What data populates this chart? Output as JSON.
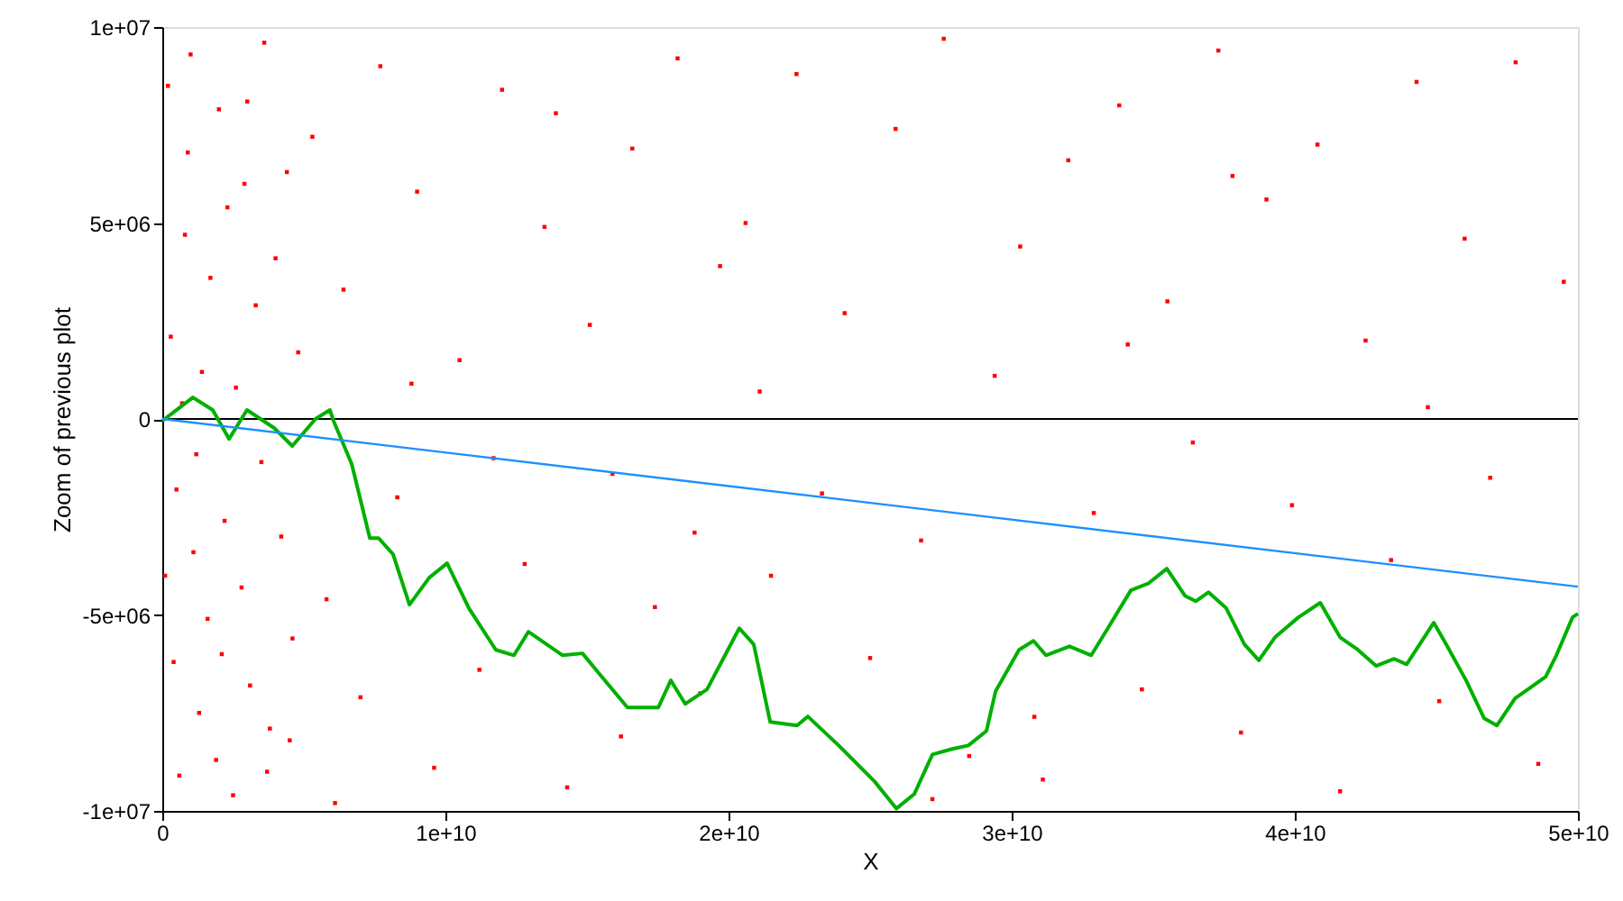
{
  "chart_data": {
    "type": "scatter",
    "xlabel": "X",
    "ylabel": "Zoom of previous plot",
    "xlim": [
      0,
      50000000000
    ],
    "ylim": [
      -10000000,
      10000000
    ],
    "xticks": [
      0,
      {
        "value": 10000000000,
        "label": "1e+10"
      },
      {
        "value": 20000000000,
        "label": "2e+10"
      },
      {
        "value": 30000000000,
        "label": "3e+10"
      },
      {
        "value": 40000000000,
        "label": "4e+10"
      },
      {
        "value": 50000000000,
        "label": "5e+10"
      }
    ],
    "yticks": [
      {
        "value": -10000000,
        "label": "-1e+07"
      },
      {
        "value": -5000000,
        "label": "-5e+06"
      },
      0,
      {
        "value": 5000000,
        "label": "5e+06"
      },
      {
        "value": 10000000,
        "label": "1e+07"
      }
    ],
    "grid": false,
    "ref_lines": [
      {
        "axis": "y",
        "value": 0,
        "color": "#000000"
      }
    ],
    "series": [
      {
        "marker": "square",
        "color": "#ff0000",
        "x": [
          200000000.0,
          400000000.0,
          300000000.0,
          600000000.0,
          800000000.0,
          500000000.0,
          1000000000.0,
          1100000000.0,
          900000000.0,
          1300000000.0,
          1400000000.0,
          1600000000.0,
          1700000000.0,
          1900000000.0,
          2000000000.0,
          2200000000.0,
          2300000000.0,
          2500000000.0,
          2600000000.0,
          2800000000.0,
          3000000000.0,
          3100000000.0,
          3300000000.0,
          3500000000.0,
          3600000000.0,
          3800000000.0,
          4000000000.0,
          4200000000.0,
          4400000000.0,
          4600000000.0,
          4800000000.0,
          100000000.0,
          700000000.0,
          1200000000.0,
          2100000000.0,
          2900000000.0,
          3700000000.0,
          4500000000.0,
          5300000000.0,
          5800000000.0,
          6400000000.0,
          7000000000.0,
          7700000000.0,
          8300000000.0,
          9000000000.0,
          9600000000.0,
          10500000000.0,
          11200000000.0,
          12000000000.0,
          12800000000.0,
          13500000000.0,
          14300000000.0,
          15100000000.0,
          15900000000.0,
          16600000000.0,
          17400000000.0,
          18200000000.0,
          19000000000.0,
          19700000000.0,
          6100000000.0,
          8800000000.0,
          11700000000.0,
          13900000000.0,
          16200000000.0,
          18800000000.0,
          20600000000.0,
          21500000000.0,
          22400000000.0,
          23300000000.0,
          24100000000.0,
          25000000000.0,
          25900000000.0,
          26800000000.0,
          27600000000.0,
          28500000000.0,
          29400000000.0,
          30300000000.0,
          31100000000.0,
          32000000000.0,
          32900000000.0,
          33800000000.0,
          34600000000.0,
          35500000000.0,
          36400000000.0,
          37300000000.0,
          38100000000.0,
          39000000000.0,
          39900000000.0,
          40800000000.0,
          41600000000.0,
          42500000000.0,
          43400000000.0,
          44300000000.0,
          45100000000.0,
          46000000000.0,
          46900000000.0,
          47800000000.0,
          48600000000.0,
          49500000000.0,
          21100000000.0,
          27200000000.0,
          34100000000.0,
          44700000000.0,
          30800000000.0,
          37800000000.0
        ],
        "values": [
          8500000.0,
          -6200000.0,
          2100000.0,
          -9100000.0,
          4700000.0,
          -1800000.0,
          9300000.0,
          -3400000.0,
          6800000.0,
          -7500000.0,
          1200000.0,
          -5100000.0,
          3600000.0,
          -8700000.0,
          7900000.0,
          -2600000.0,
          5400000.0,
          -9600000.0,
          800000.0,
          -4300000.0,
          8100000.0,
          -6800000.0,
          2900000.0,
          -1100000.0,
          9600000.0,
          -7900000.0,
          4100000.0,
          -3000000.0,
          6300000.0,
          -5600000.0,
          1700000.0,
          -4000000.0,
          400000.0,
          -900000.0,
          -6000000.0,
          6000000.0,
          -9000000.0,
          -8200000.0,
          7200000.0,
          -4600000.0,
          3300000.0,
          -7100000.0,
          9000000.0,
          -2000000.0,
          5800000.0,
          -8900000.0,
          1500000.0,
          -6400000.0,
          8400000.0,
          -3700000.0,
          4900000.0,
          -9400000.0,
          2400000.0,
          -1400000.0,
          6900000.0,
          -4800000.0,
          9200000.0,
          -7000000.0,
          3900000.0,
          -9800000.0,
          900000.0,
          -1000000.0,
          7800000.0,
          -8100000.0,
          -2900000.0,
          5000000.0,
          -4000000.0,
          8800000.0,
          -1900000.0,
          2700000.0,
          -6100000.0,
          7400000.0,
          -3100000.0,
          9700000.0,
          -8600000.0,
          1100000.0,
          4400000.0,
          -9200000.0,
          6600000.0,
          -2400000.0,
          8000000.0,
          -6900000.0,
          3000000.0,
          -600000.0,
          9400000.0,
          -8000000.0,
          5600000.0,
          -2200000.0,
          7000000.0,
          -9500000.0,
          2000000.0,
          -3600000.0,
          8600000.0,
          -7200000.0,
          4600000.0,
          -1500000.0,
          9100000.0,
          -8800000.0,
          3500000.0,
          700000.0,
          -9700000.0,
          1900000.0,
          300000.0,
          -7600000.0,
          6200000.0
        ]
      },
      {
        "type": "line",
        "color": "#00b000",
        "x": [
          0,
          1080000000.0,
          1780000000.0,
          2360000000.0,
          2990000000.0,
          3950000000.0,
          4590000000.0,
          5410000000.0,
          5920000000.0,
          6050000000.0,
          6690000000.0,
          7330000000.0,
          7640000000.0,
          8150000000.0,
          8730000000.0,
          9430000000.0,
          10060000000.0,
          10830000000.0,
          11780000000.0,
          12420000000.0,
          12930000000.0,
          14140000000.0,
          14840000000.0,
          15420000000.0,
          16430000000.0,
          17520000000.0,
          17960000000.0,
          18470000000.0,
          19240000000.0,
          20380000000.0,
          20890000000.0,
          21470000000.0,
          22420000000.0,
          22800000000.0,
          23890000000.0,
          25160000000.0,
          25930000000.0,
          26560000000.0,
          27200000000.0,
          27900000000.0,
          28470000000.0,
          29110000000.0,
          29430000000.0,
          30260000000.0,
          30770000000.0,
          31210000000.0,
          32040000000.0,
          32810000000.0,
          33320000000.0,
          34210000000.0,
          34840000000.0,
          35480000000.0,
          36120000000.0,
          36500000000.0,
          36950000000.0,
          37580000000.0,
          38220000000.0,
          38730000000.0,
          39300000000.0,
          40130000000.0,
          40900000000.0,
          41600000000.0,
          42230000000.0,
          42870000000.0,
          43510000000.0,
          43950000000.0,
          44910000000.0,
          45350000000.0,
          46050000000.0,
          46690000000.0,
          47140000000.0,
          47780000000.0,
          48860000000.0,
          49240000000.0,
          49810000000.0,
          50000000000.0
        ],
        "values": [
          -50000.0,
          550000.0,
          230000.0,
          -510000.0,
          230000.0,
          -230000.0,
          -690000.0,
          0,
          230000.0,
          -50000.0,
          -1150000.0,
          -3040000.0,
          -3040000.0,
          -3450000.0,
          -4740000.0,
          -4050000.0,
          -3680000.0,
          -4830000.0,
          -5890000.0,
          -6030000.0,
          -5430000.0,
          -6030000.0,
          -5980000.0,
          -6490000.0,
          -7360000.0,
          -7360000.0,
          -6670000.0,
          -7270000.0,
          -6900000.0,
          -5340000.0,
          -5750000.0,
          -7730000.0,
          -7820000.0,
          -7590000.0,
          -8330000.0,
          -9250000.0,
          -9940000.0,
          -9570000.0,
          -8560000.0,
          -8420000.0,
          -8330000.0,
          -7960000.0,
          -6950000.0,
          -5890000.0,
          -5660000.0,
          -6030000.0,
          -5800000.0,
          -6030000.0,
          -5430000.0,
          -4370000.0,
          -4190000.0,
          -3820000.0,
          -4510000.0,
          -4650000.0,
          -4420000.0,
          -4830000.0,
          -5750000.0,
          -6160000.0,
          -5570000.0,
          -5060000.0,
          -4690000.0,
          -5570000.0,
          -5890000.0,
          -6300000.0,
          -6120000.0,
          -6260000.0,
          -5200000.0,
          -5750000.0,
          -6670000.0,
          -7640000.0,
          -7820000.0,
          -7130000.0,
          -6580000.0,
          -6030000.0,
          -5060000.0,
          -4970000.0
        ]
      },
      {
        "type": "line",
        "color": "#1e90ff",
        "x": [
          0,
          50000000000.0
        ],
        "values": [
          0,
          -4280000.0
        ]
      }
    ]
  }
}
